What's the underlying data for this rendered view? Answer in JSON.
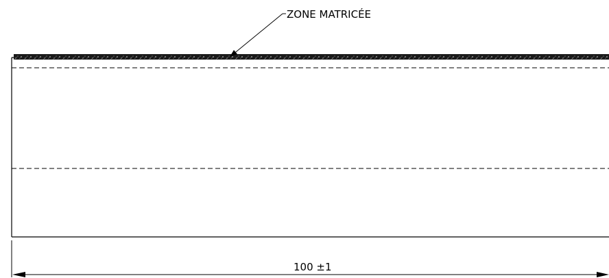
{
  "drawing": {
    "callout_label": "ZONE MATRICÉE",
    "dimension_label": "100 ±1"
  }
}
